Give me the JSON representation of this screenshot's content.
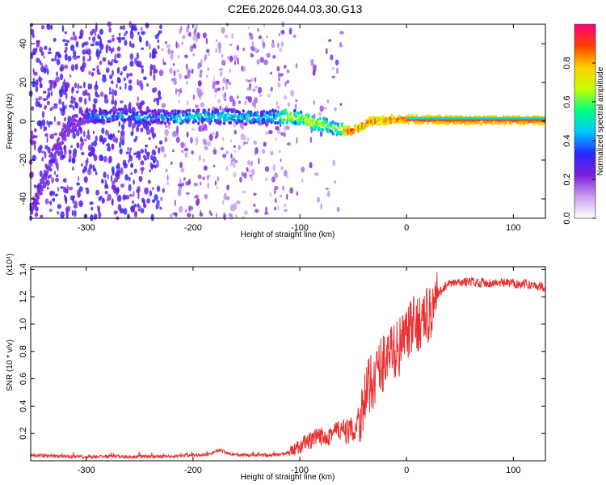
{
  "title": "C2E6.2026.044.03.30.G13",
  "chart_data": [
    {
      "type": "heatmap",
      "title": "C2E6.2026.044.03.30.G13",
      "xlabel": "Height of straight line (km)",
      "ylabel": "Frequency (Hz)",
      "xlim": [
        -352,
        130
      ],
      "ylim": [
        -50,
        50
      ],
      "xticks": [
        -300,
        -200,
        -100,
        0,
        100
      ],
      "xtick_labels": [
        "-300",
        "-200",
        "-100",
        "0",
        "100"
      ],
      "yticks": [
        -40,
        -20,
        0,
        20,
        40
      ],
      "ytick_labels": [
        "-40",
        "-20",
        "0",
        "20",
        "40"
      ],
      "ridge": {
        "x": [
          -352,
          -345,
          -335,
          -325,
          -315,
          -300,
          -285,
          -270,
          -250,
          -230,
          -210,
          -190,
          -170,
          -150,
          -130,
          -110,
          -95,
          -85,
          -75,
          -65,
          -55,
          -45,
          -35,
          -25,
          -15,
          -5,
          0,
          50,
          130
        ],
        "y": [
          -45,
          -38,
          -22,
          -10,
          -2,
          3,
          2,
          3,
          2,
          2,
          2,
          2.5,
          2.5,
          2,
          2,
          2.5,
          1,
          -1,
          -2,
          -4,
          -5,
          -4,
          0,
          0,
          1,
          1.5,
          1,
          0.5,
          0.5
        ]
      },
      "colorbar": {
        "label": "Normalized spectral amplitude",
        "range": [
          0,
          1
        ],
        "ticks": [
          0.0,
          0.2,
          0.4,
          0.6,
          0.8
        ],
        "tick_labels": [
          "0.0",
          "0.2",
          "0.4",
          "0.6",
          "0.8"
        ],
        "colors": [
          "#ffffff",
          "#c8a0f0",
          "#7a1ed8",
          "#2828ff",
          "#00c8ff",
          "#00ff80",
          "#c8ff00",
          "#ffd000",
          "#ff4000",
          "#ff0080"
        ]
      }
    },
    {
      "type": "line",
      "xlabel": "Height of straight line (km)",
      "ylabel": "SNR (10 * v/v)",
      "y_multiplier": "(x10⁴)",
      "xlim": [
        -352,
        130
      ],
      "ylim": [
        0,
        1.42
      ],
      "xticks": [
        -300,
        -200,
        -100,
        0,
        100
      ],
      "xtick_labels": [
        "-300",
        "-200",
        "-100",
        "0",
        "100"
      ],
      "yticks": [
        0.2,
        0.4,
        0.6,
        0.8,
        1.0,
        1.2,
        1.4
      ],
      "ytick_labels": [
        "0.2",
        "0.4",
        "0.6",
        "0.8",
        "1.0",
        "1.2",
        "1.4"
      ],
      "series": [
        {
          "name": "SNR",
          "color": "#e83030",
          "x": [
            -352,
            -320,
            -290,
            -260,
            -230,
            -200,
            -185,
            -175,
            -165,
            -150,
            -130,
            -115,
            -105,
            -95,
            -85,
            -75,
            -65,
            -55,
            -48,
            -42,
            -36,
            -30,
            -24,
            -18,
            -12,
            -6,
            0,
            6,
            12,
            18,
            24,
            30,
            36,
            45,
            60,
            80,
            100,
            115,
            130
          ],
          "y": [
            0.04,
            0.03,
            0.03,
            0.03,
            0.03,
            0.04,
            0.05,
            0.08,
            0.05,
            0.04,
            0.04,
            0.05,
            0.08,
            0.13,
            0.16,
            0.19,
            0.22,
            0.21,
            0.24,
            0.38,
            0.52,
            0.62,
            0.7,
            0.76,
            0.8,
            0.84,
            0.92,
            0.98,
            1.02,
            1.05,
            1.1,
            1.22,
            1.28,
            1.3,
            1.31,
            1.3,
            1.3,
            1.29,
            1.27
          ]
        }
      ]
    }
  ]
}
